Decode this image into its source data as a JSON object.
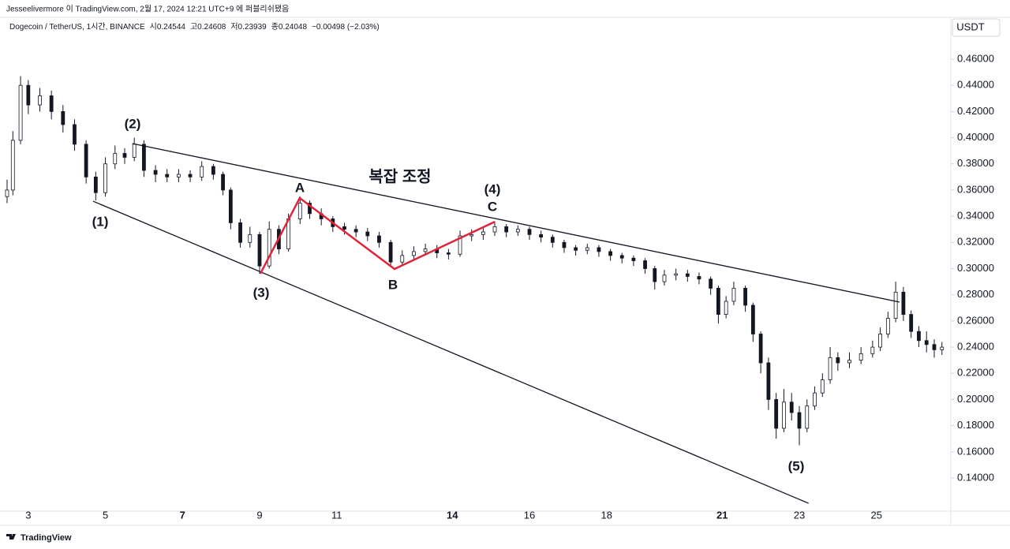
{
  "chart_data": {
    "type": "candlestick",
    "attribution": "Jesseelivermore 이 TradingView.com, 2월 17, 2024 12:21 UTC+9 에 퍼블리쉬됐음",
    "title": "Dogecoin / TetherUS, 1시간, BINANCE",
    "ohlc_labels": [
      "시0.24544",
      "고0.24608",
      "저0.23939",
      "종0.24048"
    ],
    "change": "−0.00498 (−2.03%)",
    "currency": "USDT",
    "footer": "TradingView",
    "color": "#131722",
    "xlim": [
      2.43,
      26.93
    ],
    "xticks": [
      3,
      5,
      7,
      9,
      11,
      14,
      16,
      18,
      21,
      23,
      25
    ],
    "ylim": [
      0.115,
      0.48
    ],
    "yticks": [
      {
        "value": 0.14,
        "label": "0.14000"
      },
      {
        "value": 0.16,
        "label": "0.16000"
      },
      {
        "value": 0.18,
        "label": "0.18000"
      },
      {
        "value": 0.2,
        "label": "0.20000"
      },
      {
        "value": 0.22,
        "label": "0.22000"
      },
      {
        "value": 0.24,
        "label": "0.24000"
      },
      {
        "value": 0.26,
        "label": "0.26000"
      },
      {
        "value": 0.28,
        "label": "0.28000"
      },
      {
        "value": 0.3,
        "label": "0.30000"
      },
      {
        "value": 0.32,
        "label": "0.32000"
      },
      {
        "value": 0.34,
        "label": "0.34000"
      },
      {
        "value": 0.36,
        "label": "0.36000"
      },
      {
        "value": 0.38,
        "label": "0.38000"
      },
      {
        "value": 0.4,
        "label": "0.40000"
      },
      {
        "value": 0.42,
        "label": "0.42000"
      },
      {
        "value": 0.44,
        "label": "0.44000"
      },
      {
        "value": 0.46,
        "label": "0.46000"
      }
    ],
    "grid": false,
    "x": [
      2.45,
      2.6,
      2.8,
      3.0,
      3.3,
      3.6,
      3.9,
      4.2,
      4.5,
      4.75,
      5.0,
      5.25,
      5.5,
      5.75,
      6.0,
      6.3,
      6.6,
      6.9,
      7.2,
      7.5,
      7.8,
      8.05,
      8.25,
      8.5,
      8.75,
      9.0,
      9.25,
      9.5,
      9.75,
      10.05,
      10.3,
      10.6,
      10.9,
      11.2,
      11.5,
      11.8,
      12.1,
      12.4,
      12.7,
      13.0,
      13.3,
      13.6,
      13.9,
      14.2,
      14.5,
      14.8,
      15.1,
      15.4,
      15.7,
      16.0,
      16.3,
      16.6,
      16.9,
      17.2,
      17.5,
      17.8,
      18.1,
      18.4,
      18.7,
      19.0,
      19.25,
      19.5,
      19.8,
      20.1,
      20.4,
      20.7,
      20.9,
      21.1,
      21.3,
      21.6,
      21.8,
      22.0,
      22.2,
      22.4,
      22.6,
      22.8,
      23.0,
      23.2,
      23.4,
      23.6,
      23.8,
      24.0,
      24.3,
      24.6,
      24.9,
      25.1,
      25.3,
      25.5,
      25.7,
      25.9,
      26.1,
      26.3,
      26.5,
      26.7
    ],
    "open": [
      0.355,
      0.36,
      0.398,
      0.44,
      0.425,
      0.432,
      0.42,
      0.41,
      0.395,
      0.37,
      0.358,
      0.38,
      0.388,
      0.385,
      0.395,
      0.375,
      0.372,
      0.37,
      0.372,
      0.37,
      0.378,
      0.372,
      0.36,
      0.335,
      0.32,
      0.326,
      0.302,
      0.33,
      0.315,
      0.338,
      0.35,
      0.342,
      0.338,
      0.332,
      0.33,
      0.328,
      0.325,
      0.32,
      0.305,
      0.31,
      0.313,
      0.315,
      0.312,
      0.311,
      0.325,
      0.326,
      0.328,
      0.332,
      0.328,
      0.33,
      0.326,
      0.324,
      0.32,
      0.316,
      0.314,
      0.316,
      0.313,
      0.31,
      0.308,
      0.306,
      0.3,
      0.29,
      0.295,
      0.296,
      0.294,
      0.292,
      0.285,
      0.265,
      0.275,
      0.285,
      0.272,
      0.25,
      0.228,
      0.2,
      0.178,
      0.198,
      0.19,
      0.178,
      0.195,
      0.205,
      0.215,
      0.232,
      0.228,
      0.23,
      0.235,
      0.24,
      0.25,
      0.262,
      0.282,
      0.265,
      0.252,
      0.245,
      0.242,
      0.238
    ],
    "high": [
      0.368,
      0.405,
      0.447,
      0.444,
      0.438,
      0.436,
      0.425,
      0.414,
      0.398,
      0.374,
      0.385,
      0.394,
      0.392,
      0.4,
      0.398,
      0.379,
      0.376,
      0.376,
      0.375,
      0.382,
      0.38,
      0.374,
      0.362,
      0.338,
      0.332,
      0.328,
      0.336,
      0.333,
      0.342,
      0.355,
      0.352,
      0.346,
      0.34,
      0.335,
      0.333,
      0.331,
      0.328,
      0.322,
      0.314,
      0.317,
      0.319,
      0.318,
      0.315,
      0.329,
      0.33,
      0.332,
      0.336,
      0.334,
      0.333,
      0.332,
      0.329,
      0.326,
      0.322,
      0.318,
      0.319,
      0.318,
      0.315,
      0.312,
      0.31,
      0.308,
      0.302,
      0.299,
      0.3,
      0.299,
      0.297,
      0.294,
      0.287,
      0.279,
      0.29,
      0.287,
      0.274,
      0.252,
      0.232,
      0.205,
      0.208,
      0.205,
      0.195,
      0.2,
      0.21,
      0.22,
      0.24,
      0.236,
      0.236,
      0.24,
      0.245,
      0.255,
      0.267,
      0.29,
      0.286,
      0.268,
      0.256,
      0.252,
      0.246,
      0.244
    ],
    "low": [
      0.35,
      0.356,
      0.395,
      0.418,
      0.42,
      0.414,
      0.404,
      0.39,
      0.365,
      0.352,
      0.355,
      0.376,
      0.38,
      0.382,
      0.37,
      0.366,
      0.366,
      0.366,
      0.366,
      0.367,
      0.368,
      0.356,
      0.33,
      0.316,
      0.316,
      0.296,
      0.3,
      0.311,
      0.313,
      0.334,
      0.338,
      0.333,
      0.328,
      0.326,
      0.324,
      0.321,
      0.316,
      0.302,
      0.302,
      0.307,
      0.31,
      0.308,
      0.307,
      0.309,
      0.321,
      0.322,
      0.325,
      0.324,
      0.325,
      0.322,
      0.32,
      0.316,
      0.312,
      0.31,
      0.311,
      0.309,
      0.306,
      0.304,
      0.302,
      0.296,
      0.284,
      0.287,
      0.291,
      0.29,
      0.288,
      0.28,
      0.258,
      0.262,
      0.272,
      0.267,
      0.244,
      0.22,
      0.192,
      0.17,
      0.175,
      0.184,
      0.165,
      0.175,
      0.192,
      0.202,
      0.212,
      0.222,
      0.224,
      0.227,
      0.232,
      0.237,
      0.247,
      0.259,
      0.26,
      0.247,
      0.24,
      0.236,
      0.232,
      0.234
    ],
    "close": [
      0.36,
      0.398,
      0.44,
      0.425,
      0.432,
      0.42,
      0.41,
      0.395,
      0.37,
      0.358,
      0.38,
      0.388,
      0.385,
      0.395,
      0.375,
      0.372,
      0.37,
      0.372,
      0.37,
      0.378,
      0.372,
      0.36,
      0.335,
      0.32,
      0.326,
      0.302,
      0.33,
      0.315,
      0.338,
      0.35,
      0.342,
      0.338,
      0.332,
      0.33,
      0.328,
      0.325,
      0.32,
      0.305,
      0.31,
      0.313,
      0.315,
      0.312,
      0.311,
      0.325,
      0.326,
      0.328,
      0.332,
      0.328,
      0.33,
      0.326,
      0.324,
      0.32,
      0.316,
      0.314,
      0.316,
      0.313,
      0.31,
      0.308,
      0.306,
      0.3,
      0.29,
      0.295,
      0.296,
      0.294,
      0.292,
      0.285,
      0.265,
      0.275,
      0.285,
      0.272,
      0.25,
      0.228,
      0.2,
      0.178,
      0.198,
      0.19,
      0.178,
      0.195,
      0.205,
      0.215,
      0.232,
      0.228,
      0.23,
      0.235,
      0.24,
      0.25,
      0.262,
      0.282,
      0.265,
      0.252,
      0.245,
      0.242,
      0.238,
      0.24
    ],
    "trendlines": [
      {
        "color": "#131722",
        "points": [
          [
            5.7,
            0.3955
          ],
          [
            25.6,
            0.2744
          ]
        ]
      },
      {
        "color": "#131722",
        "points": [
          [
            4.68,
            0.3515
          ],
          [
            23.24,
            0.1207
          ]
        ]
      },
      {
        "color": "#e0243c",
        "points": [
          [
            9.02,
            0.2961
          ],
          [
            10.04,
            0.3539
          ],
          [
            12.5,
            0.2997
          ],
          [
            15.1,
            0.3358
          ]
        ]
      }
    ],
    "annotations": [
      "(1)",
      "(2)",
      "(3)",
      "A",
      "B",
      "(4)",
      "C",
      "(5)",
      "복잡 조정"
    ]
  }
}
